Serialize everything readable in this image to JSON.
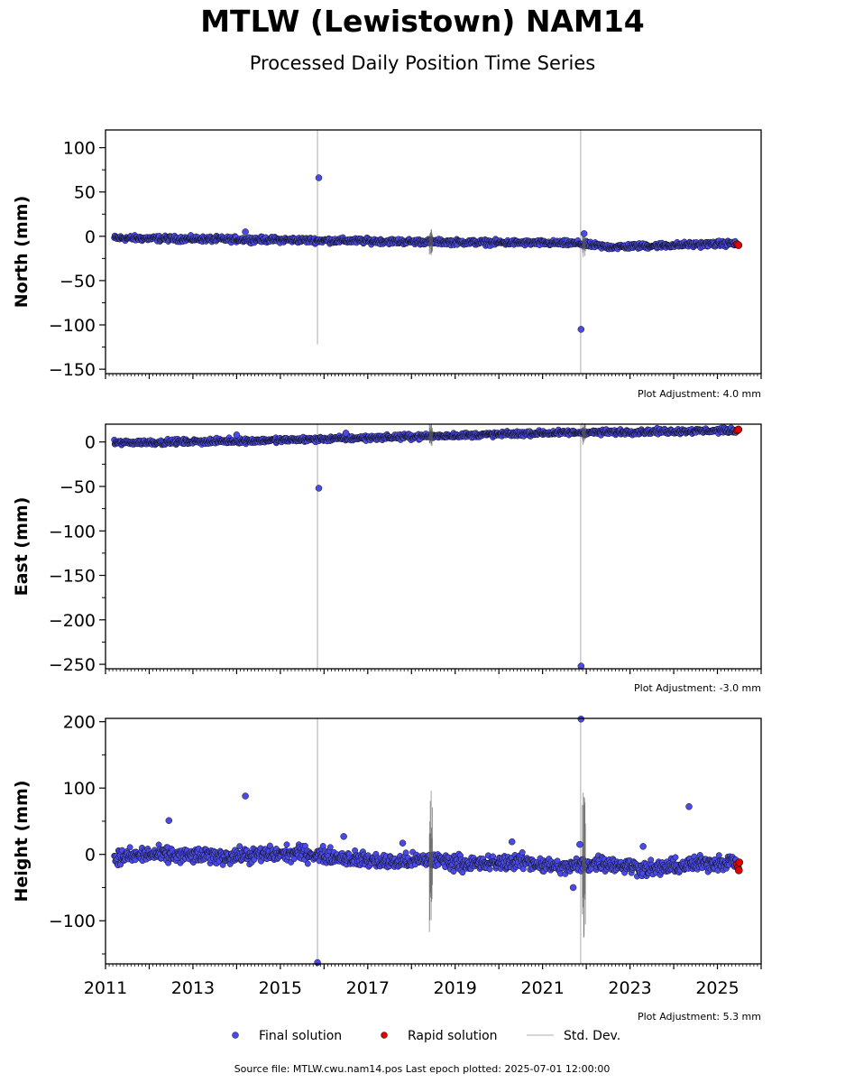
{
  "title": "MTLW (Lewistown) NAM14",
  "subtitle": "Processed Daily Position Time Series",
  "legend": {
    "final": "Final solution",
    "rapid": "Rapid solution",
    "std": "Std. Dev."
  },
  "source": "Source file: MTLW.cwu.nam14.pos  Last epoch plotted: 2025-07-01 12:00:00",
  "colors": {
    "final": "#4a4ae8",
    "rapid": "#e00000",
    "std": "#c8c8c8",
    "outline": "#000000"
  },
  "chart_data": [
    {
      "type": "scatter",
      "ylabel": "North (mm)",
      "adjustment": "Plot Adjustment: 4.0 mm",
      "xlim": [
        2011.0,
        2026.0
      ],
      "ylim": [
        -155,
        120
      ],
      "yticks": [
        100,
        50,
        0,
        -50,
        -100,
        -150
      ],
      "ytick_labels": [
        "100",
        "50",
        "0",
        "−50",
        "−100",
        "−150"
      ],
      "trend": [
        [
          2011.2,
          -2
        ],
        [
          2015.0,
          -4
        ],
        [
          2018.0,
          -6
        ],
        [
          2021.8,
          -8
        ],
        [
          2022.5,
          -12
        ],
        [
          2025.4,
          -8
        ]
      ],
      "noise": 2.2,
      "outliers": [
        [
          2015.88,
          66
        ],
        [
          2021.88,
          -105
        ],
        [
          2014.2,
          5
        ],
        [
          2021.95,
          3
        ]
      ],
      "rapid": [
        [
          2025.45,
          -9
        ],
        [
          2025.48,
          -10
        ]
      ],
      "std_lines": [
        [
          2015.85,
          -122,
          120
        ],
        [
          2021.87,
          -155,
          120
        ]
      ]
    },
    {
      "type": "scatter",
      "ylabel": "East (mm)",
      "adjustment": "Plot Adjustment: -3.0 mm",
      "xlim": [
        2011.0,
        2026.0
      ],
      "ylim": [
        -255,
        20
      ],
      "yticks": [
        0,
        -50,
        -100,
        -150,
        -200,
        -250
      ],
      "ytick_labels": [
        "0",
        "−50",
        "−100",
        "−150",
        "−200",
        "−250"
      ],
      "trend": [
        [
          2011.2,
          -1
        ],
        [
          2015.0,
          2
        ],
        [
          2018.0,
          6
        ],
        [
          2021.0,
          10
        ],
        [
          2025.4,
          13
        ]
      ],
      "noise": 2.0,
      "outliers": [
        [
          2015.88,
          -52
        ],
        [
          2021.88,
          -252
        ],
        [
          2014.0,
          8
        ],
        [
          2016.5,
          10
        ]
      ],
      "rapid": [
        [
          2025.45,
          13
        ],
        [
          2025.48,
          14
        ]
      ],
      "std_lines": [
        [
          2015.85,
          -255,
          20
        ],
        [
          2021.87,
          -255,
          20
        ]
      ]
    },
    {
      "type": "scatter",
      "ylabel": "Height (mm)",
      "adjustment": "Plot Adjustment: 5.3 mm",
      "xlim": [
        2011.0,
        2026.0
      ],
      "ylim": [
        -165,
        205
      ],
      "yticks": [
        200,
        100,
        0,
        -100
      ],
      "ytick_labels": [
        "200",
        "100",
        "0",
        "−100"
      ],
      "xtick_labels": [
        "2011",
        "2013",
        "2015",
        "2017",
        "2019",
        "2021",
        "2023",
        "2025"
      ],
      "xticks": [
        2011,
        2013,
        2015,
        2017,
        2019,
        2021,
        2023,
        2025
      ],
      "trend": [
        [
          2011.2,
          -5
        ],
        [
          2012.0,
          0
        ],
        [
          2013.5,
          -3
        ],
        [
          2015.5,
          2
        ],
        [
          2017.5,
          -12
        ],
        [
          2018.5,
          -8
        ],
        [
          2019.5,
          -15
        ],
        [
          2020.5,
          -10
        ],
        [
          2021.5,
          -20
        ],
        [
          2022.3,
          -12
        ],
        [
          2023.5,
          -22
        ],
        [
          2024.5,
          -15
        ],
        [
          2025.4,
          -10
        ]
      ],
      "noise": 8,
      "outliers": [
        [
          2012.45,
          51
        ],
        [
          2014.2,
          88
        ],
        [
          2016.45,
          27
        ],
        [
          2017.8,
          17
        ],
        [
          2020.3,
          19
        ],
        [
          2021.88,
          204
        ],
        [
          2021.85,
          15
        ],
        [
          2023.3,
          12
        ],
        [
          2024.35,
          72
        ],
        [
          2015.85,
          -163
        ],
        [
          2021.7,
          -50
        ]
      ],
      "rapid": [
        [
          2025.45,
          -15
        ],
        [
          2025.47,
          -20
        ],
        [
          2025.49,
          -24
        ],
        [
          2025.5,
          -12
        ]
      ],
      "std_lines": [
        [
          2015.85,
          -165,
          205
        ],
        [
          2021.87,
          -165,
          205
        ]
      ]
    }
  ]
}
